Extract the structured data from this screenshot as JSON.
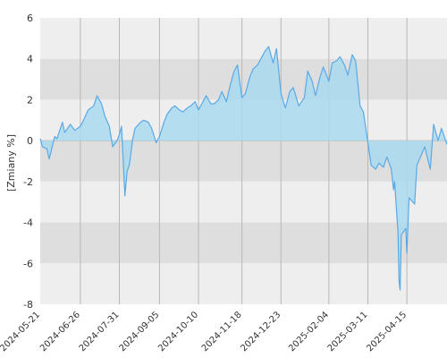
{
  "chart_data": {
    "type": "area",
    "ylabel": "[Zmiany %]",
    "ylim": [
      -8,
      6
    ],
    "yticks": [
      6,
      4,
      2,
      0,
      -2,
      -4,
      -6,
      -8
    ],
    "x_start": "2024-05-21",
    "x_end": "2025-05-21",
    "xticks": [
      "2024-05-21",
      "2024-06-26",
      "2024-07-31",
      "2024-09-05",
      "2024-10-10",
      "2024-11-18",
      "2024-12-23",
      "2025-02-04",
      "2025-03-11",
      "2025-04-15"
    ],
    "grid": true,
    "colors": {
      "line": "#5aa9e6",
      "fill": "#a9daf0",
      "band_light": "#eeeeee",
      "band_dark": "#dedede",
      "vgrid": "#b8b8b8"
    },
    "x": [
      "2024-05-21",
      "2024-05-23",
      "2024-05-27",
      "2024-05-29",
      "2024-06-03",
      "2024-06-05",
      "2024-06-10",
      "2024-06-12",
      "2024-06-17",
      "2024-06-21",
      "2024-06-26",
      "2024-06-28",
      "2024-07-03",
      "2024-07-08",
      "2024-07-11",
      "2024-07-15",
      "2024-07-18",
      "2024-07-22",
      "2024-07-25",
      "2024-07-29",
      "2024-07-31",
      "2024-08-02",
      "2024-08-05",
      "2024-08-07",
      "2024-08-09",
      "2024-08-12",
      "2024-08-14",
      "2024-08-19",
      "2024-08-22",
      "2024-08-26",
      "2024-08-29",
      "2024-09-02",
      "2024-09-05",
      "2024-09-09",
      "2024-09-12",
      "2024-09-16",
      "2024-09-19",
      "2024-09-23",
      "2024-09-26",
      "2024-09-30",
      "2024-10-03",
      "2024-10-07",
      "2024-10-10",
      "2024-10-14",
      "2024-10-17",
      "2024-10-21",
      "2024-10-24",
      "2024-10-28",
      "2024-10-31",
      "2024-11-04",
      "2024-11-07",
      "2024-11-11",
      "2024-11-14",
      "2024-11-18",
      "2024-11-21",
      "2024-11-25",
      "2024-11-28",
      "2024-12-02",
      "2024-12-05",
      "2024-12-09",
      "2024-12-12",
      "2024-12-16",
      "2024-12-19",
      "2024-12-23",
      "2024-12-27",
      "2024-12-31",
      "2025-01-03",
      "2025-01-08",
      "2025-01-13",
      "2025-01-16",
      "2025-01-20",
      "2025-01-23",
      "2025-01-27",
      "2025-01-30",
      "2025-02-04",
      "2025-02-07",
      "2025-02-11",
      "2025-02-14",
      "2025-02-18",
      "2025-02-21",
      "2025-02-25",
      "2025-02-28",
      "2025-03-04",
      "2025-03-07",
      "2025-03-11",
      "2025-03-14",
      "2025-03-18",
      "2025-03-21",
      "2025-03-25",
      "2025-03-28",
      "2025-04-01",
      "2025-04-03",
      "2025-04-04",
      "2025-04-07",
      "2025-04-08",
      "2025-04-09",
      "2025-04-10",
      "2025-04-14",
      "2025-04-15",
      "2025-04-17",
      "2025-04-22",
      "2025-04-24",
      "2025-04-28",
      "2025-05-01",
      "2025-05-06",
      "2025-05-09",
      "2025-05-13",
      "2025-05-16",
      "2025-05-21"
    ],
    "series": [
      {
        "values": [
          0.1,
          -0.3,
          -0.4,
          -0.9,
          0.2,
          0.1,
          0.9,
          0.4,
          0.8,
          0.5,
          0.7,
          0.9,
          1.5,
          1.7,
          2.2,
          1.8,
          1.2,
          0.7,
          -0.3,
          0.0,
          0.3,
          0.7,
          -2.7,
          -1.5,
          -1.2,
          0.1,
          0.6,
          0.9,
          1.0,
          0.9,
          0.6,
          -0.1,
          0.2,
          0.9,
          1.3,
          1.6,
          1.7,
          1.5,
          1.4,
          1.6,
          1.7,
          1.9,
          1.5,
          1.9,
          2.2,
          1.8,
          1.8,
          2.0,
          2.4,
          1.9,
          2.6,
          3.4,
          3.7,
          2.1,
          2.3,
          3.1,
          3.5,
          3.7,
          4.0,
          4.4,
          4.6,
          3.8,
          4.5,
          2.3,
          1.6,
          2.4,
          2.6,
          1.7,
          2.1,
          3.4,
          2.9,
          2.2,
          3.1,
          3.6,
          2.9,
          3.8,
          3.9,
          4.1,
          3.7,
          3.2,
          4.2,
          3.9,
          1.7,
          1.4,
          -0.1,
          -1.2,
          -1.4,
          -1.1,
          -1.3,
          -0.8,
          -1.4,
          -2.4,
          -2.0,
          -4.5,
          -6.9,
          -7.3,
          -4.6,
          -4.3,
          -5.5,
          -2.8,
          -3.1,
          -1.2,
          -0.7,
          -0.3,
          -1.4,
          0.8,
          0.0,
          0.6,
          -0.2
        ]
      }
    ]
  }
}
